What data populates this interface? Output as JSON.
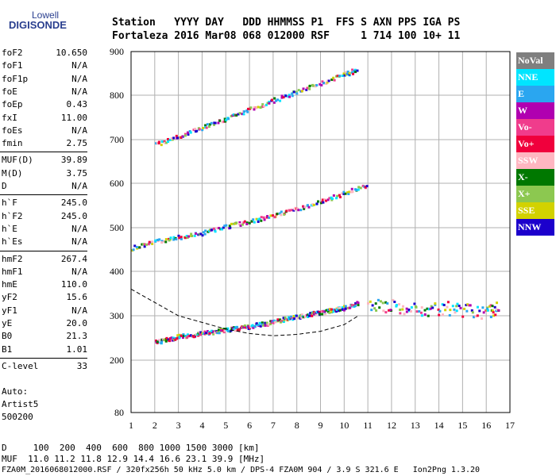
{
  "logo": {
    "top": "Lowell",
    "main": "DIGISONDE"
  },
  "header": {
    "line1": "Station   YYYY DAY   DDD HHMMSS P1  FFS S AXN PPS IGA PS",
    "line2": "Fortaleza 2016 Mar08 068 012000 RSF     1 714 100 10+ 11"
  },
  "params": [
    {
      "group": [
        {
          "k": "foF2",
          "v": "10.650"
        },
        {
          "k": "foF1",
          "v": "N/A"
        },
        {
          "k": "foF1p",
          "v": "N/A"
        },
        {
          "k": "foE",
          "v": "N/A"
        },
        {
          "k": "foEp",
          "v": "0.43"
        },
        {
          "k": "fxI",
          "v": "11.00"
        },
        {
          "k": "foEs",
          "v": "N/A"
        },
        {
          "k": "fmin",
          "v": "2.75"
        }
      ]
    },
    {
      "group": [
        {
          "k": "MUF(D)",
          "v": "39.89"
        },
        {
          "k": "M(D)",
          "v": "3.75"
        },
        {
          "k": "D",
          "v": "N/A"
        }
      ]
    },
    {
      "group": [
        {
          "k": "h`F",
          "v": "245.0"
        },
        {
          "k": "h`F2",
          "v": "245.0"
        },
        {
          "k": "h`E",
          "v": "N/A"
        },
        {
          "k": "h`Es",
          "v": "N/A"
        }
      ]
    },
    {
      "group": [
        {
          "k": "hmF2",
          "v": "267.4"
        },
        {
          "k": "hmF1",
          "v": "N/A"
        },
        {
          "k": "hmE",
          "v": "110.0"
        },
        {
          "k": "yF2",
          "v": "15.6"
        },
        {
          "k": "yF1",
          "v": "N/A"
        },
        {
          "k": "yE",
          "v": "20.0"
        },
        {
          "k": "B0",
          "v": "21.3"
        },
        {
          "k": "B1",
          "v": "1.01"
        }
      ]
    },
    {
      "group": [
        {
          "k": "C-level",
          "v": "33"
        }
      ]
    }
  ],
  "auto": {
    "l1": "Auto:",
    "l2": "Artist5",
    "l3": "500200"
  },
  "legend": [
    {
      "label": "NoVal",
      "bg": "#7f7f7f",
      "fg": "#ffffff"
    },
    {
      "label": "NNE",
      "bg": "#00e5ff",
      "fg": "#ffffff"
    },
    {
      "label": "E",
      "bg": "#2aa6f0",
      "fg": "#ffffff"
    },
    {
      "label": "W",
      "bg": "#b000b0",
      "fg": "#ffffff"
    },
    {
      "label": "Vo-",
      "bg": "#f03c8c",
      "fg": "#ffffff"
    },
    {
      "label": "Vo+",
      "bg": "#f0003c",
      "fg": "#ffffff"
    },
    {
      "label": "SSW",
      "bg": "#ffb6c1",
      "fg": "#ffffff"
    },
    {
      "label": "X-",
      "bg": "#007800",
      "fg": "#ffffff"
    },
    {
      "label": "X+",
      "bg": "#8cc850",
      "fg": "#ffffff"
    },
    {
      "label": "SSE",
      "bg": "#d2d200",
      "fg": "#ffffff"
    },
    {
      "label": "NNW",
      "bg": "#1c00cc",
      "fg": "#ffffff"
    }
  ],
  "footer": {
    "line1": "D     100  200  400  600  800 1000 1500 3000 [km]",
    "line2": "MUF  11.0 11.2 11.8 12.9 14.4 16.6 23.1 39.9 [MHz]",
    "line3": "FZA0M_2016068012000.RSF / 320fx256h 50 kHz 5.0 km / DPS-4 FZA0M 904 / 3.9 S 321.6 E   Ion2Png 1.3.20"
  },
  "chart_data": {
    "type": "scatter",
    "xlim": [
      1,
      17
    ],
    "ylim": [
      80,
      900
    ],
    "x_ticks": [
      "1",
      "2",
      "3",
      "4",
      "5",
      "6",
      "7",
      "8",
      "9",
      "10",
      "11",
      "12",
      "13",
      "14",
      "15",
      "16",
      "17"
    ],
    "y_ticks": [
      "80",
      "200",
      "300",
      "400",
      "500",
      "600",
      "700",
      "800",
      "900"
    ],
    "grid": true,
    "traces": [
      {
        "name": "F2 O-trace",
        "points": [
          [
            2.0,
            243
          ],
          [
            2.5,
            248
          ],
          [
            3.0,
            255
          ],
          [
            3.5,
            258
          ],
          [
            4.0,
            262
          ],
          [
            4.5,
            266
          ],
          [
            5.0,
            270
          ],
          [
            5.5,
            274
          ],
          [
            6.0,
            278
          ],
          [
            6.5,
            283
          ],
          [
            7.0,
            288
          ],
          [
            7.5,
            295
          ],
          [
            8.0,
            300
          ],
          [
            8.5,
            305
          ],
          [
            9.0,
            310
          ],
          [
            9.5,
            315
          ],
          [
            10.0,
            320
          ],
          [
            10.6,
            330
          ]
        ]
      },
      {
        "name": "Second hop",
        "points": [
          [
            1.0,
            455
          ],
          [
            2.0,
            470
          ],
          [
            3.0,
            480
          ],
          [
            4.0,
            490
          ],
          [
            5.0,
            505
          ],
          [
            6.0,
            515
          ],
          [
            7.0,
            530
          ],
          [
            8.0,
            545
          ],
          [
            9.0,
            560
          ],
          [
            10.0,
            580
          ],
          [
            11.0,
            600
          ]
        ]
      },
      {
        "name": "Third hop",
        "points": [
          [
            2.0,
            690
          ],
          [
            3.0,
            710
          ],
          [
            4.0,
            730
          ],
          [
            5.0,
            750
          ],
          [
            6.0,
            770
          ],
          [
            7.0,
            790
          ],
          [
            8.0,
            810
          ],
          [
            9.0,
            830
          ],
          [
            10.0,
            850
          ],
          [
            10.5,
            860
          ]
        ]
      },
      {
        "name": "Spread F",
        "points": [
          [
            11,
            320
          ],
          [
            12,
            325
          ],
          [
            13,
            315
          ],
          [
            14,
            320
          ],
          [
            15,
            315
          ],
          [
            16,
            310
          ],
          [
            16.5,
            320
          ]
        ]
      }
    ],
    "profile": [
      [
        1,
        360
      ],
      [
        2,
        330
      ],
      [
        3,
        300
      ],
      [
        4,
        285
      ],
      [
        5,
        270
      ],
      [
        6,
        260
      ],
      [
        7,
        255
      ],
      [
        8,
        258
      ],
      [
        9,
        265
      ],
      [
        10,
        280
      ],
      [
        10.6,
        300
      ]
    ]
  }
}
